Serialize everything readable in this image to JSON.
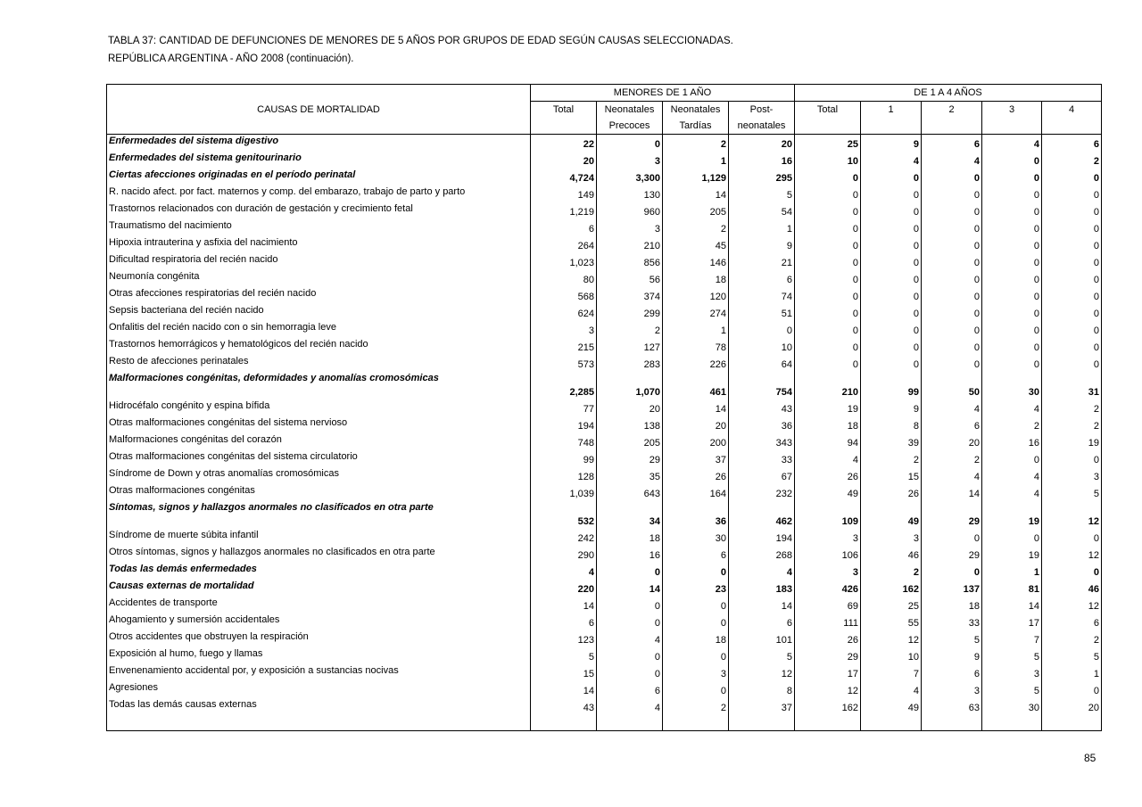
{
  "title_line1": "TABLA 37: CANTIDAD DE DEFUNCIONES DE MENORES DE 5 AÑOS POR GRUPOS DE EDAD SEGÚN CAUSAS SELECCIONADAS.",
  "title_line2": "REPÚBLICA ARGENTINA - AÑO 2008 (continuación).",
  "header": {
    "causes": "CAUSAS DE MORTALIDAD",
    "group1": "MENORES DE 1 AÑO",
    "group2": "DE  1 A 4 AÑOS",
    "cols": [
      [
        "Total",
        ""
      ],
      [
        "Neonatales",
        "Precoces"
      ],
      [
        "Neonatales",
        "Tardías"
      ],
      [
        "Post-",
        "neonatales"
      ],
      [
        "Total",
        ""
      ],
      [
        "1",
        ""
      ],
      [
        "2",
        ""
      ],
      [
        "3",
        ""
      ],
      [
        "4",
        ""
      ]
    ]
  },
  "rows": [
    {
      "label": "Enfermedades del sistema digestivo",
      "bold": true,
      "values": [
        "22",
        "0",
        "2",
        "20",
        "25",
        "9",
        "6",
        "4",
        "6"
      ]
    },
    {
      "label": "Enfermedades del sistema genitourinario",
      "bold": true,
      "values": [
        "20",
        "3",
        "1",
        "16",
        "10",
        "4",
        "4",
        "0",
        "2"
      ]
    },
    {
      "label": "Ciertas afecciones originadas en el período perinatal",
      "bold": true,
      "values": [
        "4,724",
        "3,300",
        "1,129",
        "295",
        "0",
        "0",
        "0",
        "0",
        "0"
      ]
    },
    {
      "label": "R. nacido afect. por fact. maternos y comp. del embarazo, trabajo de parto y  parto",
      "values": [
        "149",
        "130",
        "14",
        "5",
        "0",
        "0",
        "0",
        "0",
        "0"
      ]
    },
    {
      "label": "Trastornos relacionados con duración de  gestación y crecimiento fetal",
      "values": [
        "1,219",
        "960",
        "205",
        "54",
        "0",
        "0",
        "0",
        "0",
        "0"
      ]
    },
    {
      "label": "Traumatismo del nacimiento",
      "values": [
        "6",
        "3",
        "2",
        "1",
        "0",
        "0",
        "0",
        "0",
        "0"
      ]
    },
    {
      "label": "Hipoxia intrauterina y asfixia del nacimiento",
      "values": [
        "264",
        "210",
        "45",
        "9",
        "0",
        "0",
        "0",
        "0",
        "0"
      ]
    },
    {
      "label": "Dificultad respiratoria del recién nacido",
      "values": [
        "1,023",
        "856",
        "146",
        "21",
        "0",
        "0",
        "0",
        "0",
        "0"
      ]
    },
    {
      "label": "Neumonía congénita",
      "values": [
        "80",
        "56",
        "18",
        "6",
        "0",
        "0",
        "0",
        "0",
        "0"
      ]
    },
    {
      "label": "Otras afecciones respiratorias del recién nacido",
      "values": [
        "568",
        "374",
        "120",
        "74",
        "0",
        "0",
        "0",
        "0",
        "0"
      ]
    },
    {
      "label": "Sepsis bacteriana del recién nacido",
      "values": [
        "624",
        "299",
        "274",
        "51",
        "0",
        "0",
        "0",
        "0",
        "0"
      ]
    },
    {
      "label": "Onfalitis del recién nacido con o sin hemorragia leve",
      "values": [
        "3",
        "2",
        "1",
        "0",
        "0",
        "0",
        "0",
        "0",
        "0"
      ]
    },
    {
      "label": "Trastornos hemorrágicos y hematológicos del recién nacido",
      "values": [
        "215",
        "127",
        "78",
        "10",
        "0",
        "0",
        "0",
        "0",
        "0"
      ]
    },
    {
      "label": "Resto de afecciones perinatales",
      "values": [
        "573",
        "283",
        "226",
        "64",
        "0",
        "0",
        "0",
        "0",
        "0"
      ]
    },
    {
      "label": "Malformaciones congénitas, deformidades y anomalías cromosómicas",
      "bold": true,
      "tall": true,
      "values": [
        "2,285",
        "1,070",
        "461",
        "754",
        "210",
        "99",
        "50",
        "30",
        "31"
      ]
    },
    {
      "label": "Hidrocéfalo congénito y espina bífida",
      "values": [
        "77",
        "20",
        "14",
        "43",
        "19",
        "9",
        "4",
        "4",
        "2"
      ]
    },
    {
      "label": "Otras malformaciones congénitas del sistema nervioso",
      "values": [
        "194",
        "138",
        "20",
        "36",
        "18",
        "8",
        "6",
        "2",
        "2"
      ]
    },
    {
      "label": "Malformaciones congénitas del corazón",
      "values": [
        "748",
        "205",
        "200",
        "343",
        "94",
        "39",
        "20",
        "16",
        "19"
      ]
    },
    {
      "label": "Otras malformaciones congénitas del sistema circulatorio",
      "values": [
        "99",
        "29",
        "37",
        "33",
        "4",
        "2",
        "2",
        "0",
        "0"
      ]
    },
    {
      "label": "Síndrome de Down y otras anomalías cromosómicas",
      "values": [
        "128",
        "35",
        "26",
        "67",
        "26",
        "15",
        "4",
        "4",
        "3"
      ]
    },
    {
      "label": "Otras malformaciones congénitas",
      "values": [
        "1,039",
        "643",
        "164",
        "232",
        "49",
        "26",
        "14",
        "4",
        "5"
      ]
    },
    {
      "label": "Síntomas, signos y hallazgos anormales  no clasificados en otra parte",
      "bold": true,
      "tall": true,
      "values": [
        "532",
        "34",
        "36",
        "462",
        "109",
        "49",
        "29",
        "19",
        "12"
      ]
    },
    {
      "label": "Síndrome de muerte súbita infantil",
      "values": [
        "242",
        "18",
        "30",
        "194",
        "3",
        "3",
        "0",
        "0",
        "0"
      ]
    },
    {
      "label": "Otros síntomas, signos y hallazgos anormales no clasificados en otra parte",
      "values": [
        "290",
        "16",
        "6",
        "268",
        "106",
        "46",
        "29",
        "19",
        "12"
      ]
    },
    {
      "label": "Todas las demás enfermedades",
      "bold": true,
      "values": [
        "4",
        "0",
        "0",
        "4",
        "3",
        "2",
        "0",
        "1",
        "0"
      ]
    },
    {
      "label": "Causas externas de mortalidad",
      "bold": true,
      "values": [
        "220",
        "14",
        "23",
        "183",
        "426",
        "162",
        "137",
        "81",
        "46"
      ]
    },
    {
      "label": "Accidentes de transporte",
      "values": [
        "14",
        "0",
        "0",
        "14",
        "69",
        "25",
        "18",
        "14",
        "12"
      ]
    },
    {
      "label": "Ahogamiento y sumersión accidentales",
      "values": [
        "6",
        "0",
        "0",
        "6",
        "111",
        "55",
        "33",
        "17",
        "6"
      ]
    },
    {
      "label": "Otros accidentes que obstruyen la respiración",
      "values": [
        "123",
        "4",
        "18",
        "101",
        "26",
        "12",
        "5",
        "7",
        "2"
      ]
    },
    {
      "label": "Exposición al humo, fuego y llamas",
      "values": [
        "5",
        "0",
        "0",
        "5",
        "29",
        "10",
        "9",
        "5",
        "5"
      ]
    },
    {
      "label": "Envenenamiento accidental por, y exposición a sustancias nocivas",
      "values": [
        "15",
        "0",
        "3",
        "12",
        "17",
        "7",
        "6",
        "3",
        "1"
      ]
    },
    {
      "label": "Agresiones",
      "values": [
        "14",
        "6",
        "0",
        "8",
        "12",
        "4",
        "3",
        "5",
        "0"
      ]
    },
    {
      "label": "Todas las demás causas externas",
      "values": [
        "43",
        "4",
        "2",
        "37",
        "162",
        "49",
        "63",
        "30",
        "20"
      ]
    }
  ],
  "page_number": "85"
}
